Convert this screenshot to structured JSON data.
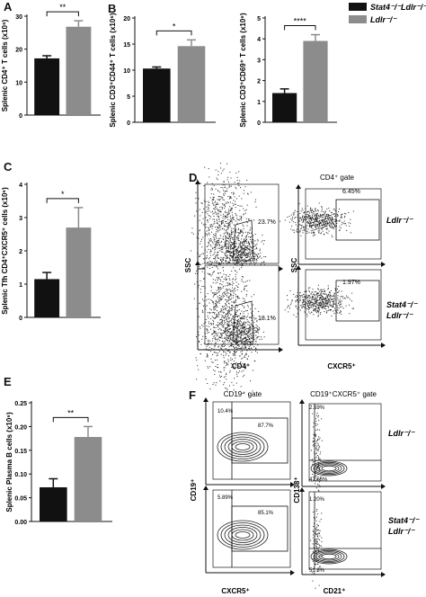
{
  "legend": [
    {
      "label": "Stat4⁻/⁻Ldlr⁻/⁻",
      "color": "#111111"
    },
    {
      "label": "Ldlr⁻/⁻",
      "color": "#8c8c8c"
    }
  ],
  "chart_data": [
    {
      "type": "bar",
      "panel": "A",
      "ylabel": "Splenic CD4⁺ T cells (x10⁶)",
      "categories": [
        "Stat4⁻/⁻Ldlr⁻/⁻",
        "Ldlr⁻/⁻"
      ],
      "values": [
        17.2,
        26.8
      ],
      "errors": [
        0.8,
        1.8
      ],
      "ylim": [
        0,
        30
      ],
      "yticks": [
        "0",
        "10",
        "20",
        "30"
      ],
      "significance": "**"
    },
    {
      "type": "bar",
      "panel": "B1",
      "ylabel": "Splenic CD3⁺CD44⁺ T cells (x10⁶)",
      "categories": [
        "Stat4⁻/⁻Ldlr⁻/⁻",
        "Ldlr⁻/⁻"
      ],
      "values": [
        10.3,
        14.6
      ],
      "errors": [
        0.3,
        1.2
      ],
      "ylim": [
        0,
        20
      ],
      "yticks": [
        "0",
        "5",
        "10",
        "15",
        "20"
      ],
      "significance": "*"
    },
    {
      "type": "bar",
      "panel": "B2",
      "ylabel": "Splenic CD3⁺CD69⁺ T cells (x10⁶)",
      "categories": [
        "Stat4⁻/⁻Ldlr⁻/⁻",
        "Ldlr⁻/⁻"
      ],
      "values": [
        1.4,
        3.9
      ],
      "errors": [
        0.2,
        0.3
      ],
      "ylim": [
        0,
        5
      ],
      "yticks": [
        "0",
        "1",
        "2",
        "3",
        "4",
        "5"
      ],
      "significance": "****"
    },
    {
      "type": "bar",
      "panel": "C",
      "ylabel": "Splenic Tfh CD4⁺CXCR5⁺ cells (x10⁶)",
      "categories": [
        "Stat4⁻/⁻Ldlr⁻/⁻",
        "Ldlr⁻/⁻"
      ],
      "values": [
        1.15,
        2.7
      ],
      "errors": [
        0.2,
        0.6
      ],
      "ylim": [
        0,
        4
      ],
      "yticks": [
        "0",
        "1",
        "2",
        "3",
        "4"
      ],
      "significance": "*"
    },
    {
      "type": "bar",
      "panel": "E",
      "ylabel": "Splenic Plasma B cells (x10⁶)",
      "categories": [
        "Stat4⁻/⁻Ldlr⁻/⁻",
        "Ldlr⁻/⁻"
      ],
      "values": [
        0.072,
        0.178
      ],
      "errors": [
        0.018,
        0.022
      ],
      "ylim": [
        0,
        0.25
      ],
      "yticks": [
        "0.00",
        "0.05",
        "0.10",
        "0.15",
        "0.20",
        "0.25"
      ],
      "significance": "**"
    }
  ],
  "flow_D": {
    "gate_title": "CD4⁺ gate",
    "xlabel_left": "CD4⁺",
    "ylabel_left": "SSC",
    "xlabel_right": "CXCR5⁺",
    "ylabel_right": "SSC",
    "top": {
      "left_pct": "23.7%",
      "right_pct": "6.45%",
      "genotype": "Ldlr⁻/⁻"
    },
    "bottom": {
      "left_pct": "18.1%",
      "right_pct": "1.97%",
      "genotype_line1": "Stat4⁻/⁻",
      "genotype_line2": "Ldlr⁻/⁻"
    }
  },
  "flow_F": {
    "gate_left": "CD19⁺ gate",
    "gate_right": "CD19⁺CXCR5⁺ gate",
    "xlabel_left": "CXCR5⁺",
    "ylabel_left": "CD19⁺",
    "xlabel_right": "CD21⁺",
    "ylabel_right": "CD138⁺",
    "top": {
      "tl": "10.4%",
      "tr": "87.7%",
      "r_top": "2.59%",
      "r_bot": "47.55%",
      "genotype": "Ldlr⁻/⁻"
    },
    "bottom": {
      "tl": "5.89%",
      "tr": "85.1%",
      "r_top": "1.20%",
      "r_bot": "51.8%",
      "genotype_line1": "Stat4⁻/⁻",
      "genotype_line2": "Ldlr⁻/⁻"
    }
  },
  "panel_labels": [
    "A",
    "B",
    "C",
    "D",
    "E",
    "F"
  ]
}
